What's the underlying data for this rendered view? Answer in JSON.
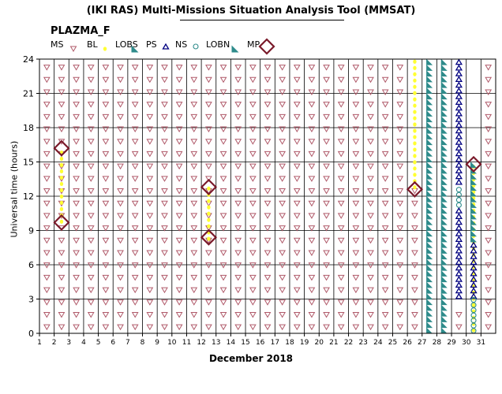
{
  "header": {
    "title": "(IKI RAS) Multi-Missions Situation Analysis Tool (MMSAT)",
    "panel_label": "PLAZMA_F"
  },
  "legend": [
    {
      "label": "MS",
      "marker": "triangle-down-icon",
      "color": "#b05a6a"
    },
    {
      "label": "BL",
      "marker": "dot-icon",
      "color": "#ffff33"
    },
    {
      "label": "LOBS",
      "marker": "right-triangle-icon",
      "color": "#2e8b8b"
    },
    {
      "label": "PS",
      "marker": "triangle-up-icon",
      "color": "#000080"
    },
    {
      "label": "NS",
      "marker": "circle-icon",
      "color": "#2e8b8b"
    },
    {
      "label": "LOBN",
      "marker": "right-triangle-icon",
      "color": "#2e8b8b"
    },
    {
      "label": "MP",
      "marker": "diamond-icon",
      "color": "#7a1a2a"
    }
  ],
  "chart_data": {
    "type": "scatter",
    "title": "",
    "xlabel": "December 2018",
    "ylabel": "Universal time (hours)",
    "xlim": [
      1,
      32
    ],
    "ylim": [
      0,
      24
    ],
    "x_ticks": [
      1,
      2,
      3,
      4,
      5,
      6,
      7,
      8,
      9,
      10,
      11,
      12,
      13,
      14,
      15,
      16,
      17,
      18,
      19,
      20,
      21,
      22,
      23,
      24,
      25,
      26,
      27,
      28,
      29,
      30,
      31
    ],
    "y_ticks": [
      0,
      3,
      6,
      9,
      12,
      15,
      18,
      21,
      24
    ],
    "grid": true,
    "colors": {
      "MS": "#b05a6a",
      "BL": "#ffff33",
      "LOBS": "#2e8b8b",
      "PS": "#000080",
      "NS": "#2e8b8b",
      "LOBN": "#2e8b8b",
      "MP": "#7a1a2a"
    },
    "series": [
      {
        "name": "MS",
        "intervals": [
          [
            1.5,
            0,
            24
          ],
          [
            2.5,
            0,
            24
          ],
          [
            3.5,
            0,
            24
          ],
          [
            4.5,
            0,
            24
          ],
          [
            5.5,
            0,
            24
          ],
          [
            6.5,
            0,
            24
          ],
          [
            7.5,
            0,
            24
          ],
          [
            8.5,
            0,
            24
          ],
          [
            9.5,
            0,
            24
          ],
          [
            10.5,
            0,
            24
          ],
          [
            11.5,
            0,
            24
          ],
          [
            12.5,
            0,
            24
          ],
          [
            13.5,
            0,
            24
          ],
          [
            14.5,
            0,
            24
          ],
          [
            15.5,
            0,
            24
          ],
          [
            16.5,
            0,
            24
          ],
          [
            17.5,
            0,
            24
          ],
          [
            18.5,
            0,
            24
          ],
          [
            19.5,
            0,
            24
          ],
          [
            20.5,
            0,
            24
          ],
          [
            21.5,
            0,
            24
          ],
          [
            22.5,
            0,
            24
          ],
          [
            23.5,
            0,
            24
          ],
          [
            24.5,
            0,
            24
          ],
          [
            25.5,
            0,
            24
          ],
          [
            26.5,
            0,
            12.5
          ],
          [
            29.5,
            0,
            2.5
          ],
          [
            31.5,
            0,
            24
          ]
        ]
      },
      {
        "name": "BL",
        "intervals": [
          [
            2.5,
            9.5,
            16
          ],
          [
            12.5,
            8,
            13
          ],
          [
            26.5,
            12.5,
            24
          ],
          [
            30.5,
            0,
            15
          ]
        ]
      },
      {
        "name": "LOBS",
        "intervals": [
          [
            27.5,
            0,
            24
          ],
          [
            28.5,
            0,
            24
          ]
        ]
      },
      {
        "name": "PS",
        "intervals": [
          [
            29.5,
            13,
            24
          ],
          [
            29.5,
            3,
            11
          ],
          [
            30.5,
            3,
            8
          ]
        ]
      },
      {
        "name": "NS",
        "intervals": [
          [
            29.5,
            11,
            13
          ],
          [
            30.5,
            0,
            3
          ]
        ]
      },
      {
        "name": "LOBN",
        "intervals": [
          [
            30.5,
            8,
            15
          ]
        ]
      },
      {
        "name": "MP",
        "points": [
          [
            2.5,
            16.2
          ],
          [
            2.5,
            9.7
          ],
          [
            12.5,
            12.8
          ],
          [
            12.5,
            8.4
          ],
          [
            26.5,
            12.6
          ],
          [
            30.5,
            14.8
          ]
        ]
      }
    ]
  }
}
